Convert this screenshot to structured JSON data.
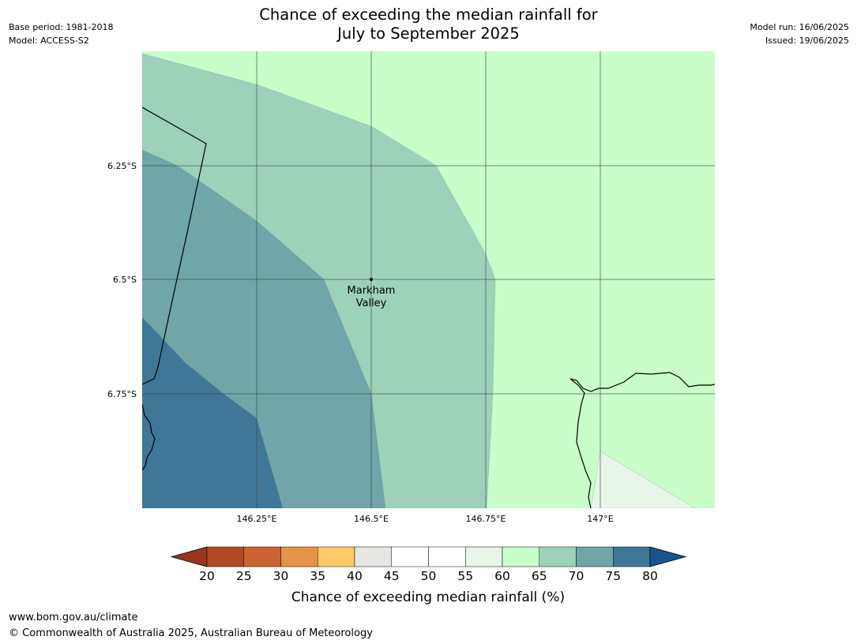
{
  "header": {
    "title_line1": "Chance of exceeding the median rainfall for",
    "title_line2": "July to September 2025",
    "base_period": "Base period: 1981-2018",
    "model": "Model: ACCESS-S2",
    "model_run": "Model run: 16/06/2025",
    "issued": "Issued: 19/06/2025"
  },
  "map": {
    "lat_labels": [
      "6.25°S",
      "6.5°S",
      "6.75°S"
    ],
    "lon_labels": [
      "146.25°E",
      "146.5°E",
      "146.75°E",
      "147°E"
    ],
    "place_line1": "Markham",
    "place_line2": "Valley",
    "class_colors": {
      "55-60": "#eaf5ea",
      "60-65": "#c9fdc9",
      "65-70": "#9dd1ba",
      "70-75": "#70a5a9",
      "75-80": "#3f7896"
    }
  },
  "colorbar": {
    "ticks": [
      "20",
      "25",
      "30",
      "35",
      "40",
      "45",
      "50",
      "55",
      "60",
      "65",
      "70",
      "75",
      "80"
    ],
    "colors": [
      "#9a3620",
      "#b04a24",
      "#cc6431",
      "#e59346",
      "#fecb68",
      "#e8e6e3",
      "#ffffff",
      "#ffffff",
      "#eaf5ea",
      "#c9fdc9",
      "#9dd1ba",
      "#70a5a9",
      "#3f7896",
      "#1a538c"
    ],
    "title": "Chance of exceeding median rainfall (%)"
  },
  "footer": {
    "url": "www.bom.gov.au/climate",
    "copyright": "© Commonwealth of Australia 2025, Australian Bureau of Meteorology"
  }
}
